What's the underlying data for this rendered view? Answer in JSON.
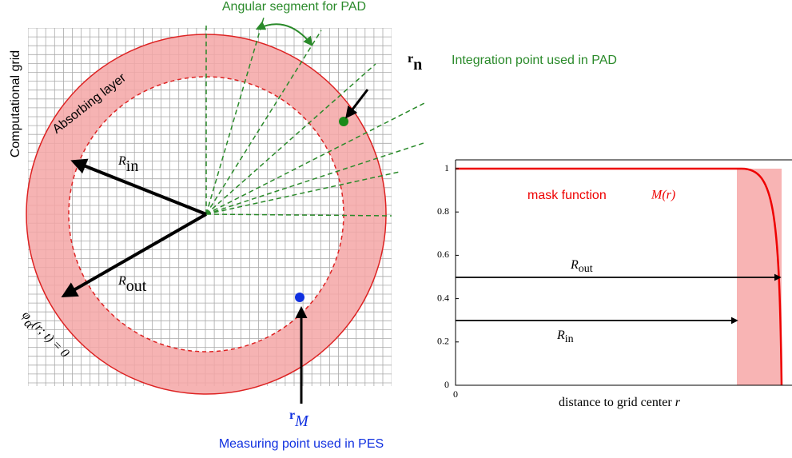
{
  "labels": {
    "angular_segment": "Angular segment for PAD",
    "integration_point": "Integration point used in PAD",
    "measuring_point": "Measuring point used in PES",
    "computational_grid": "Computational grid",
    "absorbing_layer": "Absorbing layer",
    "mask_function": "mask function"
  },
  "math": {
    "r_n": {
      "base": "r",
      "sub": "n"
    },
    "r_M": {
      "base": "r",
      "sub": "M"
    },
    "R_in": {
      "base": "R",
      "sub": "in"
    },
    "R_out": {
      "base": "R",
      "sub": "out"
    },
    "boundary": {
      "base": "φ",
      "sub": "α",
      "rest": "(r; t) = 0"
    },
    "mask_symbol": "M(r)"
  },
  "chart_data": {
    "type": "line",
    "xlabel": {
      "text": "distance to grid center",
      "var": "r"
    },
    "ylim": [
      0,
      1
    ],
    "yticks": [
      0,
      0.2,
      0.4,
      0.6,
      0.8,
      1
    ],
    "xticks": [
      0
    ]
  }
}
